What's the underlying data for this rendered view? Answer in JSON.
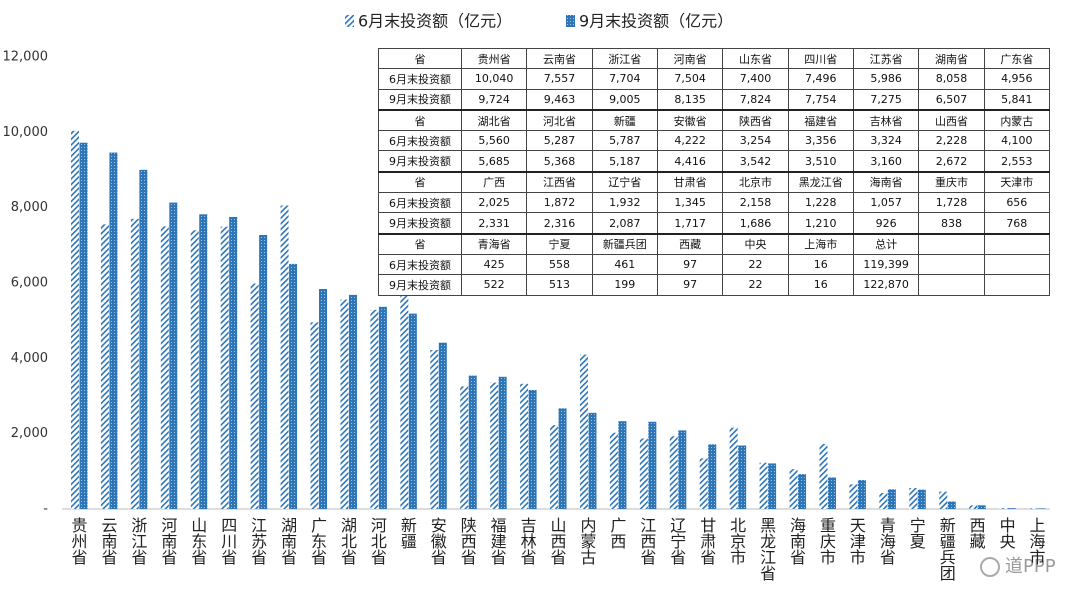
{
  "chart_data": {
    "type": "bar",
    "categories": [
      "贵州省",
      "云南省",
      "浙江省",
      "河南省",
      "山东省",
      "四川省",
      "江苏省",
      "湖南省",
      "广东省",
      "湖北省",
      "河北省",
      "新疆",
      "安徽省",
      "陕西省",
      "福建省",
      "吉林省",
      "山西省",
      "内蒙古",
      "广西",
      "江西省",
      "辽宁省",
      "甘肃省",
      "北京市",
      "黑龙江省",
      "海南省",
      "重庆市",
      "天津市",
      "青海省",
      "宁夏",
      "新疆兵团",
      "西藏",
      "中央",
      "上海市"
    ],
    "series": [
      {
        "name": "6月末投资额（亿元）",
        "table_name": "6月末投资额",
        "color": "#2e75b6",
        "style": "hatched",
        "values": [
          10040,
          7557,
          7704,
          7504,
          7400,
          7496,
          5986,
          8058,
          4956,
          5560,
          5287,
          5787,
          4222,
          3254,
          3356,
          3324,
          2228,
          4100,
          2025,
          1872,
          1932,
          1345,
          2158,
          1228,
          1057,
          1728,
          656,
          425,
          558,
          461,
          97,
          22,
          16
        ],
        "value_labels": [
          "10,040",
          "7,557",
          "7,704",
          "7,504",
          "7,400",
          "7,496",
          "5,986",
          "8,058",
          "4,956",
          "5,560",
          "5,287",
          "5,787",
          "4,222",
          "3,254",
          "3,356",
          "3,324",
          "2,228",
          "4,100",
          "2,025",
          "1,872",
          "1,932",
          "1,345",
          "2,158",
          "1,228",
          "1,057",
          "1,728",
          "656",
          "425",
          "558",
          "461",
          "97",
          "22",
          "16"
        ],
        "total": 119399,
        "total_label": "119,399"
      },
      {
        "name": "9月末投资额（亿元）",
        "table_name": "9月末投资额",
        "color": "#2e75b6",
        "style": "dotted",
        "values": [
          9724,
          9463,
          9005,
          8135,
          7824,
          7754,
          7275,
          6507,
          5841,
          5685,
          5368,
          5187,
          4416,
          3542,
          3510,
          3160,
          2672,
          2553,
          2331,
          2316,
          2087,
          1717,
          1686,
          1210,
          926,
          838,
          768,
          522,
          513,
          199,
          97,
          22,
          16
        ],
        "value_labels": [
          "9,724",
          "9,463",
          "9,005",
          "8,135",
          "7,824",
          "7,754",
          "7,275",
          "6,507",
          "5,841",
          "5,685",
          "5,368",
          "5,187",
          "4,416",
          "3,542",
          "3,510",
          "3,160",
          "2,672",
          "2,553",
          "2,331",
          "2,316",
          "2,087",
          "1,717",
          "1,686",
          "1,210",
          "926",
          "838",
          "768",
          "522",
          "513",
          "199",
          "97",
          "22",
          "16"
        ],
        "total": 122870,
        "total_label": "122,870"
      }
    ],
    "ylim": [
      0,
      12000
    ],
    "yticks": [
      {
        "value": 0,
        "label": "-"
      },
      {
        "value": 2000,
        "label": "2,000"
      },
      {
        "value": 4000,
        "label": "4,000"
      },
      {
        "value": 6000,
        "label": "6,000"
      },
      {
        "value": 8000,
        "label": "8,000"
      },
      {
        "value": 10000,
        "label": "10,000"
      },
      {
        "value": 12000,
        "label": "12,000"
      }
    ],
    "grid": false,
    "table": {
      "header": "省",
      "total_label": "总计",
      "columns": 9
    },
    "watermark": "道PPP"
  }
}
